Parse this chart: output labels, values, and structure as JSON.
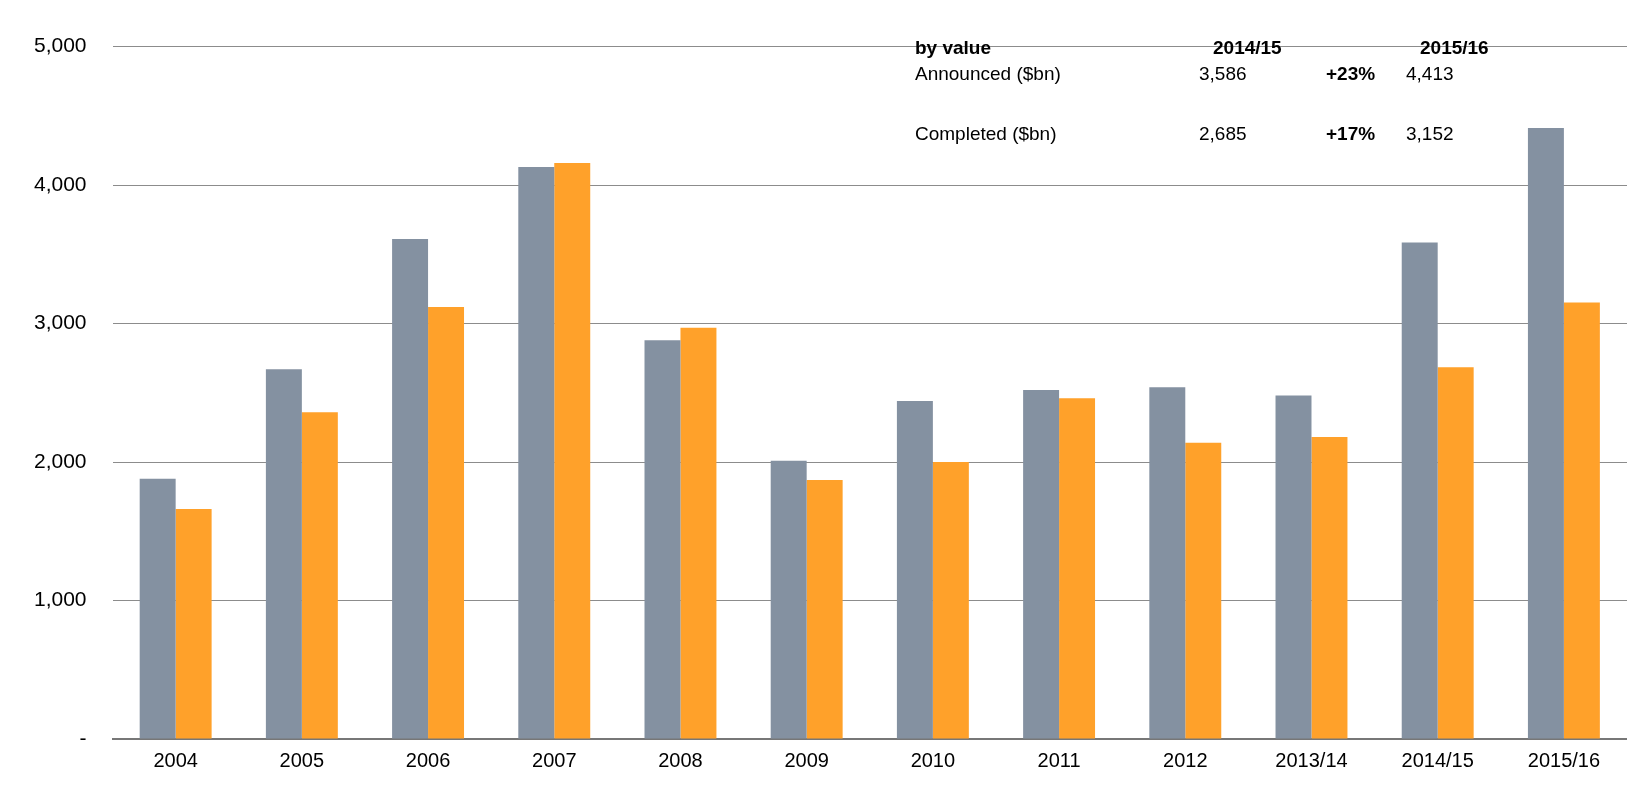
{
  "chart_data": {
    "type": "bar",
    "categories": [
      "2004",
      "2005",
      "2006",
      "2007",
      "2008",
      "2009",
      "2010",
      "2011",
      "2012",
      "2013/14",
      "2014/15",
      "2015/16"
    ],
    "series": [
      {
        "color": "#8491a1",
        "values": [
          1880,
          2670,
          3610,
          4130,
          2880,
          2010,
          2440,
          2520,
          2540,
          2480,
          3586,
          4413
        ]
      },
      {
        "color": "#ffa12a",
        "values": [
          1660,
          2360,
          3120,
          4160,
          2970,
          1870,
          2000,
          2460,
          2140,
          2180,
          2685,
          3152
        ]
      }
    ],
    "ylim": [
      0,
      5000
    ],
    "yticks": [
      {
        "value": 0,
        "label": "-"
      },
      {
        "value": 1000,
        "label": "1,000"
      },
      {
        "value": 2000,
        "label": "2,000"
      },
      {
        "value": 3000,
        "label": "3,000"
      },
      {
        "value": 4000,
        "label": "4,000"
      },
      {
        "value": 5000,
        "label": "5,000"
      }
    ],
    "grid": "y",
    "legend": false,
    "annotations": [
      "by value",
      "2014/15",
      "2015/16",
      "Announced ($bn)",
      "3,586",
      "+23%",
      "4,413",
      "Completed ($bn)",
      "2,685",
      "+17%",
      "3,152"
    ]
  }
}
